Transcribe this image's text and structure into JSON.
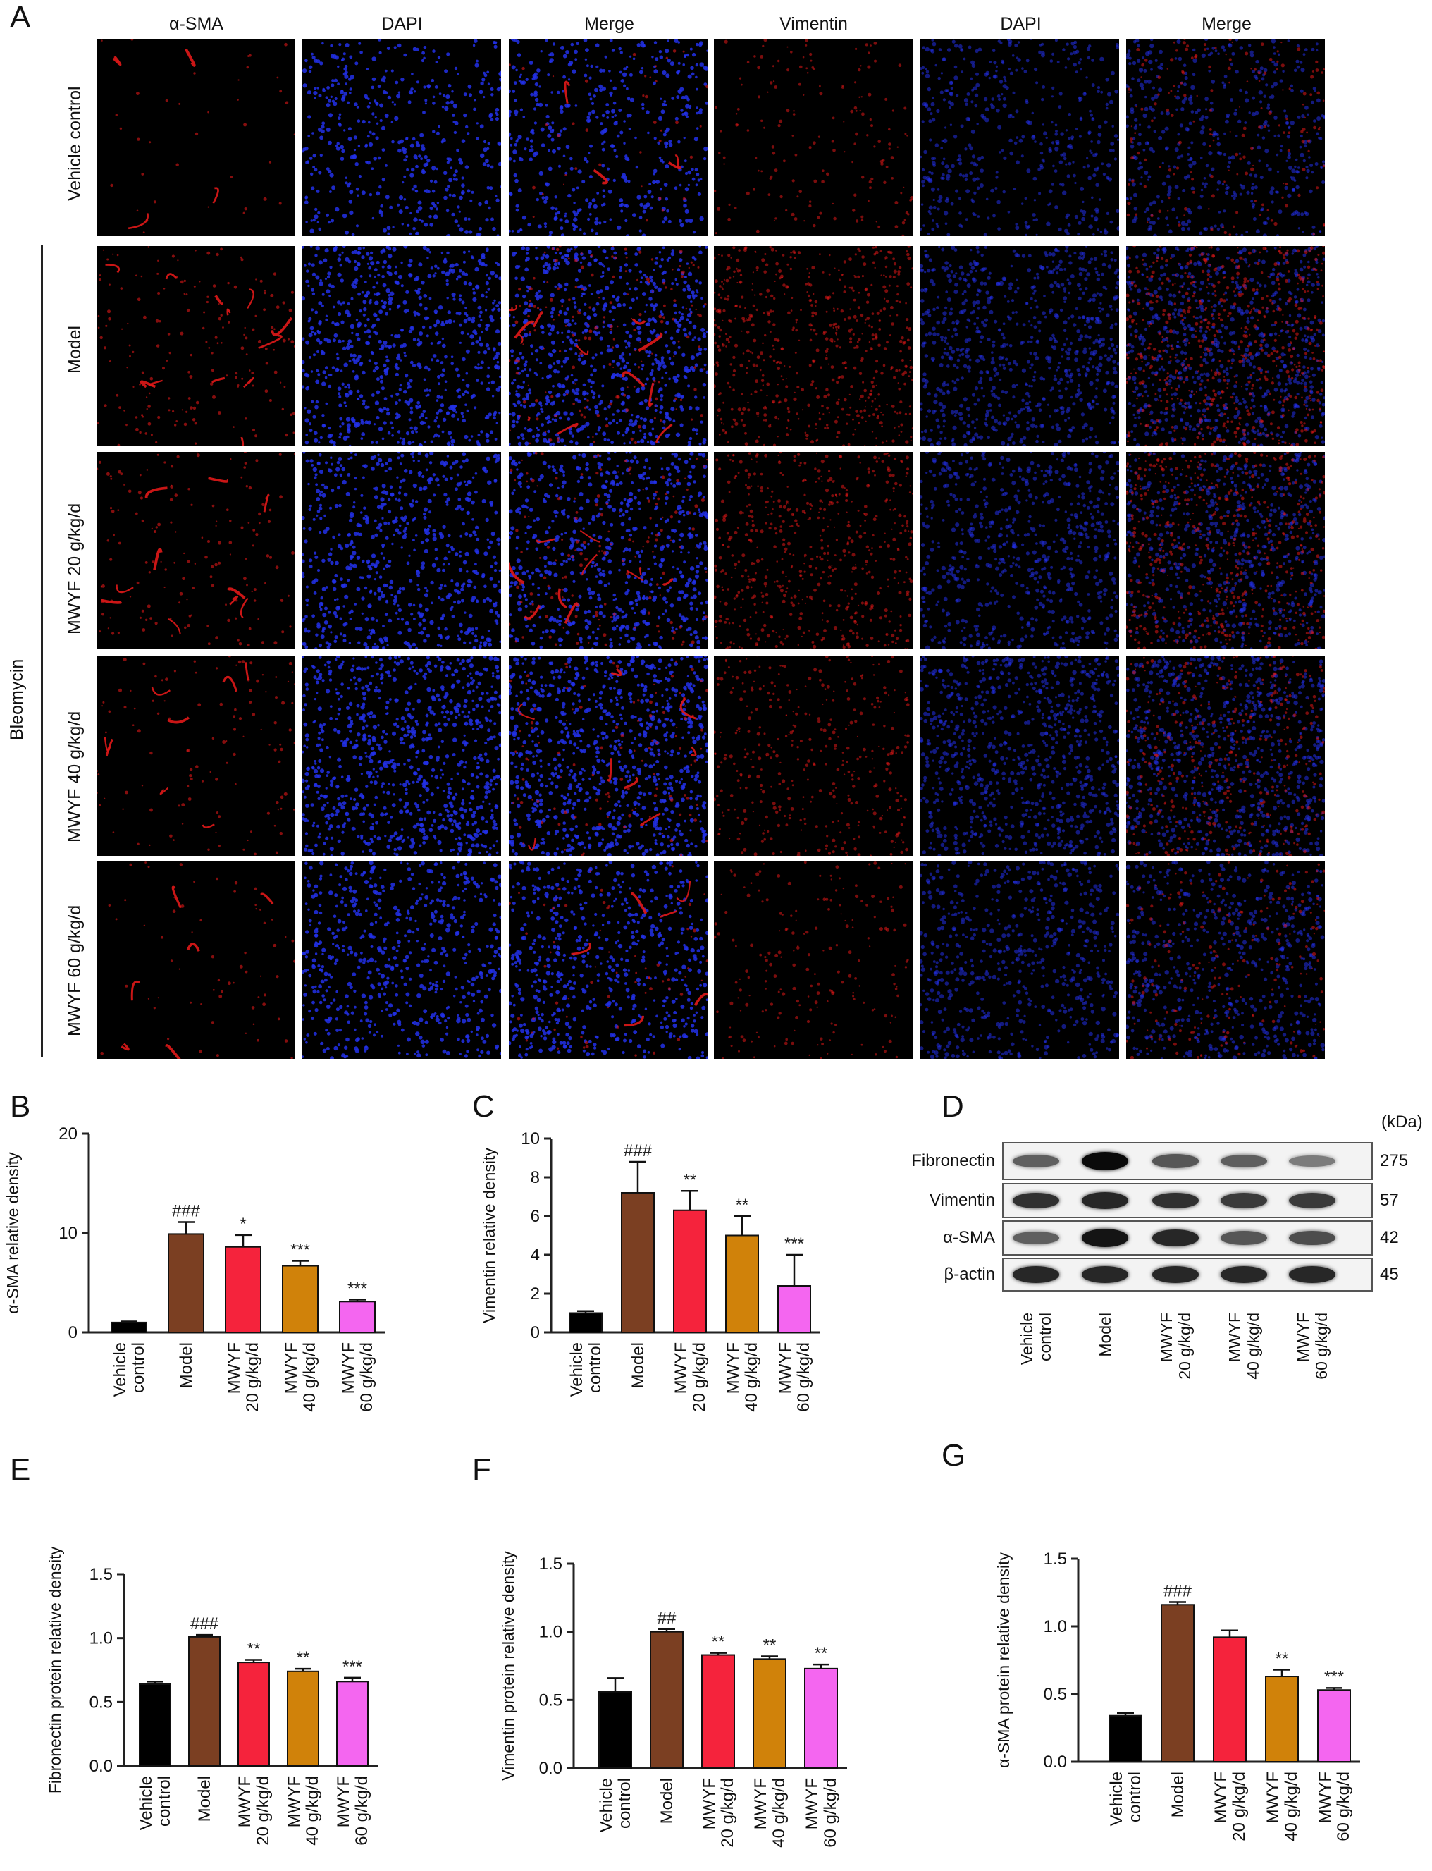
{
  "panel_a": {
    "letter": "A",
    "columns": [
      "α-SMA",
      "DAPI",
      "Merge",
      "Vimentin",
      "DAPI",
      "Merge"
    ],
    "rows": [
      "Vehicle control",
      "Model",
      "MWYF 20 g/kg/d",
      "MWYF 40 g/kg/d",
      "MWYF 60 g/kg/d"
    ],
    "group_label": "Bleomycin",
    "stain_colors": {
      "red": "#e01818",
      "blue": "#2230e8",
      "black": "#000000"
    }
  },
  "colors": {
    "vehicle": "#000000",
    "model": "#7b3f22",
    "mwyf20": "#f5233c",
    "mwyf40": "#d0820a",
    "mwyf60": "#f466f0"
  },
  "panel_d": {
    "letter": "D",
    "unit_label": "(kDa)",
    "proteins": [
      {
        "name": "Fibronectin",
        "kda": "275",
        "intensity": [
          0.55,
          1.0,
          0.6,
          0.55,
          0.4
        ]
      },
      {
        "name": "Vimentin",
        "kda": "57",
        "intensity": [
          0.8,
          0.85,
          0.8,
          0.75,
          0.75
        ]
      },
      {
        "name": "α-SMA",
        "kda": "42",
        "intensity": [
          0.55,
          0.95,
          0.85,
          0.6,
          0.65
        ]
      },
      {
        "name": "β-actin",
        "kda": "45",
        "intensity": [
          0.85,
          0.85,
          0.85,
          0.85,
          0.85
        ]
      }
    ],
    "lanes": [
      [
        "Vehicle",
        "control"
      ],
      [
        "Model"
      ],
      [
        "MWYF",
        "20 g/kg/d"
      ],
      [
        "MWYF",
        "40 g/kg/d"
      ],
      [
        "MWYF",
        "60 g/kg/d"
      ]
    ]
  },
  "chart_data": [
    {
      "panel": "B",
      "type": "bar",
      "categories": [
        [
          "Vehicle",
          "control"
        ],
        [
          "Model"
        ],
        [
          "MWYF",
          "20 g/kg/d"
        ],
        [
          "MWYF",
          "40 g/kg/d"
        ],
        [
          "MWYF",
          "60 g/kg/d"
        ]
      ],
      "values": [
        1.0,
        9.9,
        8.6,
        6.7,
        3.1
      ],
      "errors": [
        0.1,
        1.2,
        1.2,
        0.5,
        0.2
      ],
      "annotations": [
        "",
        "###",
        "*",
        "***",
        "***"
      ],
      "ylabel": "α-SMA relative density",
      "ylim": [
        0,
        20
      ],
      "yticks": [
        0,
        10,
        20
      ]
    },
    {
      "panel": "C",
      "type": "bar",
      "categories": [
        [
          "Vehicle",
          "control"
        ],
        [
          "Model"
        ],
        [
          "MWYF",
          "20 g/kg/d"
        ],
        [
          "MWYF",
          "40 g/kg/d"
        ],
        [
          "MWYF",
          "60 g/kg/d"
        ]
      ],
      "values": [
        1.0,
        7.2,
        6.3,
        5.0,
        2.4
      ],
      "errors": [
        0.1,
        1.6,
        1.0,
        1.0,
        1.6
      ],
      "annotations": [
        "",
        "###",
        "**",
        "**",
        "***"
      ],
      "ylabel": "Vimentin relative density",
      "ylim": [
        0,
        10
      ],
      "yticks": [
        0,
        2,
        4,
        6,
        8,
        10
      ]
    },
    {
      "panel": "E",
      "type": "bar",
      "categories": [
        [
          "Vehicle",
          "control"
        ],
        [
          "Model"
        ],
        [
          "MWYF",
          "20 g/kg/d"
        ],
        [
          "MWYF",
          "40 g/kg/d"
        ],
        [
          "MWYF",
          "60 g/kg/d"
        ]
      ],
      "values": [
        0.64,
        1.01,
        0.81,
        0.74,
        0.66
      ],
      "errors": [
        0.02,
        0.015,
        0.02,
        0.02,
        0.03
      ],
      "annotations": [
        "",
        "###",
        "**",
        "**",
        "***"
      ],
      "ylabel": "Fibronectin protein relative density",
      "ylim": [
        0,
        1.5
      ],
      "yticks": [
        "0.0",
        "0.5",
        "1.0",
        "1.5"
      ]
    },
    {
      "panel": "F",
      "type": "bar",
      "categories": [
        [
          "Vehicle",
          "control"
        ],
        [
          "Model"
        ],
        [
          "MWYF",
          "20 g/kg/d"
        ],
        [
          "MWYF",
          "40 g/kg/d"
        ],
        [
          "MWYF",
          "60 g/kg/d"
        ]
      ],
      "values": [
        0.56,
        1.0,
        0.83,
        0.8,
        0.73
      ],
      "errors": [
        0.1,
        0.02,
        0.015,
        0.02,
        0.03
      ],
      "annotations": [
        "",
        "##",
        "**",
        "**",
        "**"
      ],
      "ylabel": "Vimentin protein relative density",
      "ylim": [
        0,
        1.5
      ],
      "yticks": [
        "0.0",
        "0.5",
        "1.0",
        "1.5"
      ]
    },
    {
      "panel": "G",
      "type": "bar",
      "categories": [
        [
          "Vehicle",
          "control"
        ],
        [
          "Model"
        ],
        [
          "MWYF",
          "20 g/kg/d"
        ],
        [
          "MWYF",
          "40 g/kg/d"
        ],
        [
          "MWYF",
          "60 g/kg/d"
        ]
      ],
      "values": [
        0.34,
        1.16,
        0.92,
        0.63,
        0.53
      ],
      "errors": [
        0.02,
        0.02,
        0.05,
        0.05,
        0.015
      ],
      "annotations": [
        "",
        "###",
        "",
        "**",
        "***"
      ],
      "ylabel": "α-SMA protein relative density",
      "ylim": [
        0,
        1.5
      ],
      "yticks": [
        "0.0",
        "0.5",
        "1.0",
        "1.5"
      ]
    }
  ]
}
